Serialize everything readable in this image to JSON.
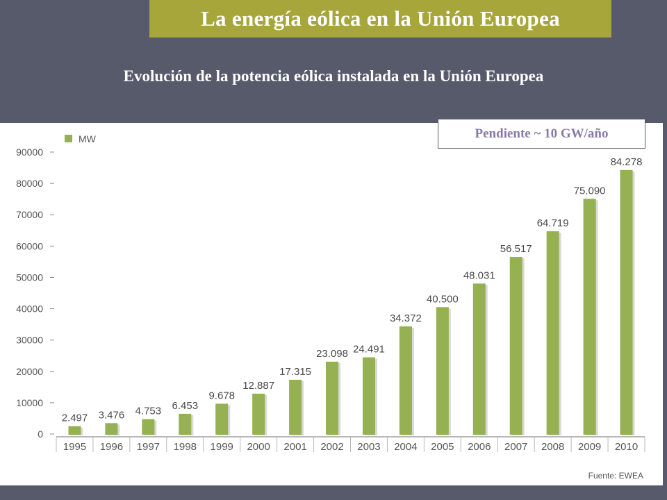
{
  "header": {
    "title": "La energía eólica en la Unión Europea",
    "subtitle": "Evolución de la potencia eólica instalada en la Unión Europea"
  },
  "annotation": {
    "slope_text": "Pendiente ~  10 GW/año"
  },
  "colors": {
    "background": "#575a6b",
    "title_bar": "#a6a63a",
    "bar": "#95b152",
    "annotation_text": "#8b7aa6"
  },
  "chart_data": {
    "type": "bar",
    "title": "",
    "xlabel": "",
    "ylabel": "",
    "ylim": [
      0,
      90000
    ],
    "yticks": [
      0,
      10000,
      20000,
      30000,
      40000,
      50000,
      60000,
      70000,
      80000,
      90000
    ],
    "legend": {
      "label": "MW",
      "placement": "top-left"
    },
    "source": "Fuente: EWEA",
    "categories": [
      "1995",
      "1996",
      "1997",
      "1998",
      "1999",
      "2000",
      "2001",
      "2002",
      "2003",
      "2004",
      "2005",
      "2006",
      "2007",
      "2008",
      "2009",
      "2010"
    ],
    "values": [
      2497,
      3476,
      4753,
      6453,
      9678,
      12887,
      17315,
      23098,
      24491,
      34372,
      40500,
      48031,
      56517,
      64719,
      75090,
      84278
    ],
    "labels": [
      "2.497",
      "3.476",
      "4.753",
      "6.453",
      "9.678",
      "12.887",
      "17.315",
      "23.098",
      "24.491",
      "34.372",
      "40.500",
      "48.031",
      "56.517",
      "64.719",
      "75.090",
      "84.278"
    ]
  }
}
